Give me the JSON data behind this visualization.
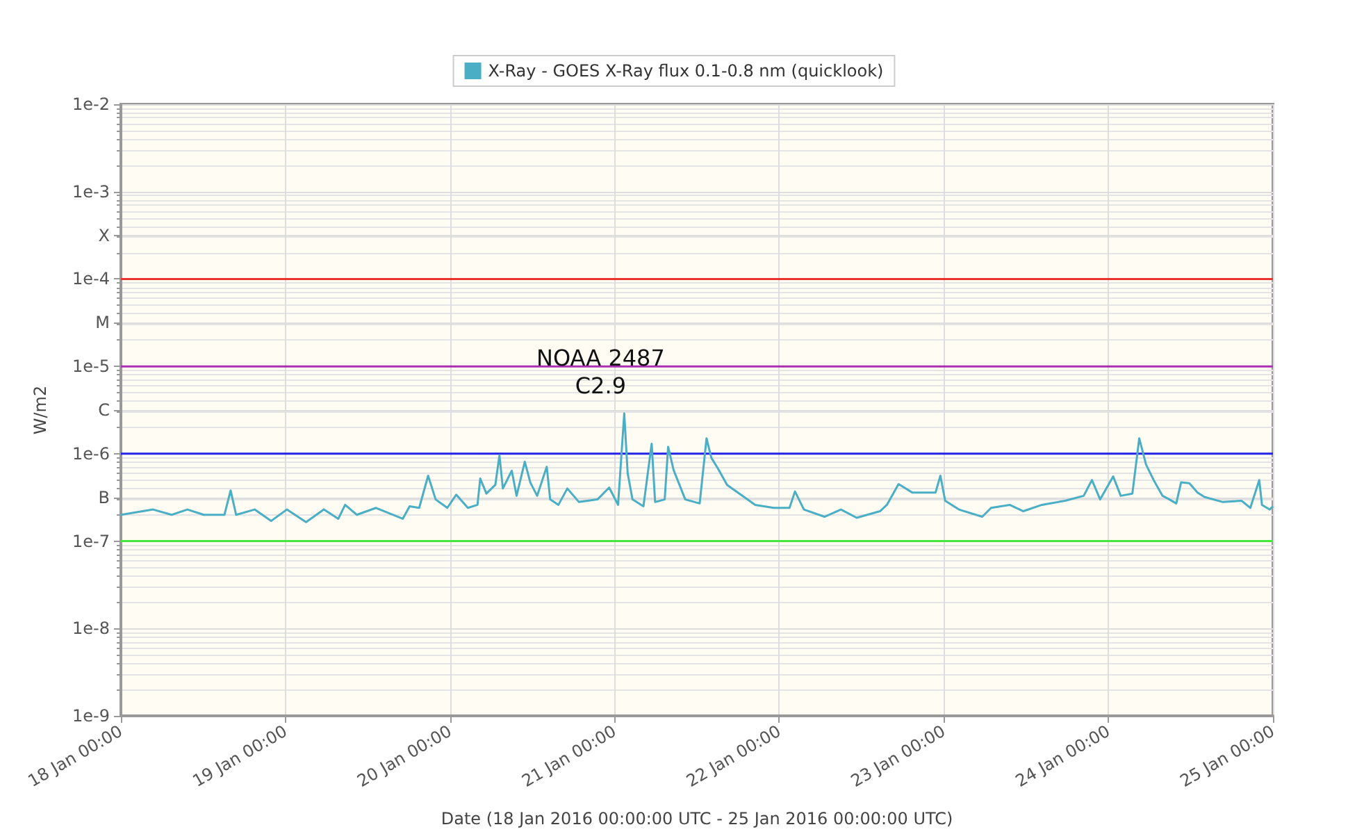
{
  "chart_data": {
    "type": "line",
    "xlabel": "Date (18 Jan 2016 00:00:00 UTC - 25 Jan 2016 00:00:00 UTC)",
    "ylabel": "W/m2",
    "log": "y",
    "grid": true,
    "legend": "top",
    "xlim": [
      "2016-01-18T00:00",
      "2016-01-25T00:00"
    ],
    "xticks": [
      {
        "value": "2016-01-18T00:00",
        "label": "18 Jan 00:00"
      },
      {
        "value": "2016-01-19T00:00",
        "label": "19 Jan 00:00"
      },
      {
        "value": "2016-01-20T00:00",
        "label": "20 Jan 00:00"
      },
      {
        "value": "2016-01-21T00:00",
        "label": "21 Jan 00:00"
      },
      {
        "value": "2016-01-22T00:00",
        "label": "22 Jan 00:00"
      },
      {
        "value": "2016-01-23T00:00",
        "label": "23 Jan 00:00"
      },
      {
        "value": "2016-01-24T00:00",
        "label": "24 Jan 00:00"
      },
      {
        "value": "2016-01-25T00:00",
        "label": "25 Jan 00:00"
      }
    ],
    "ylim": [
      1e-09,
      0.01
    ],
    "yticks": [
      {
        "value": 1e-09,
        "label": "1e-9"
      },
      {
        "value": 1e-08,
        "label": "1e-8"
      },
      {
        "value": 1e-07,
        "label": "1e-7"
      },
      {
        "value": 3.162e-07,
        "label": "B"
      },
      {
        "value": 1e-06,
        "label": "1e-6"
      },
      {
        "value": 3.162e-06,
        "label": "C"
      },
      {
        "value": 1e-05,
        "label": "1e-5"
      },
      {
        "value": 3.162e-05,
        "label": "M"
      },
      {
        "value": 0.0001,
        "label": "1e-4"
      },
      {
        "value": 0.0003162,
        "label": "X"
      },
      {
        "value": 0.001,
        "label": "1e-3"
      },
      {
        "value": 0.01,
        "label": "1e-2"
      }
    ],
    "ref_lines": [
      {
        "axis": "y",
        "value": 0.0001,
        "color": "#e8332f"
      },
      {
        "axis": "y",
        "value": 1e-05,
        "color": "#a72fb0"
      },
      {
        "axis": "y",
        "value": 1e-06,
        "color": "#2222e8"
      },
      {
        "axis": "y",
        "value": 1e-07,
        "color": "#44e83a"
      }
    ],
    "annotations": [
      {
        "text": "NOAA 2487\nC2.9",
        "x": "2016-01-21T01:24",
        "y": 2.9e-06
      }
    ],
    "series": [
      {
        "name": "X-Ray - GOES X-Ray flux 0.1-0.8 nm (quicklook)",
        "color": "#4aaec4",
        "x": [
          "2016-01-18T00:00",
          "2016-01-18T04:42",
          "2016-01-18T07:24",
          "2016-01-18T09:42",
          "2016-01-18T12:06",
          "2016-01-18T15:06",
          "2016-01-18T16:00",
          "2016-01-18T16:48",
          "2016-01-18T19:30",
          "2016-01-18T21:54",
          "2016-01-19T00:12",
          "2016-01-19T03:00",
          "2016-01-19T05:36",
          "2016-01-19T07:42",
          "2016-01-19T08:42",
          "2016-01-19T10:24",
          "2016-01-19T13:12",
          "2016-01-19T17:06",
          "2016-01-19T18:06",
          "2016-01-19T19:30",
          "2016-01-19T20:48",
          "2016-01-19T21:54",
          "2016-01-19T23:36",
          "2016-01-20T00:54",
          "2016-01-20T02:36",
          "2016-01-20T04:00",
          "2016-01-20T04:24",
          "2016-01-20T05:18",
          "2016-01-20T06:36",
          "2016-01-20T07:12",
          "2016-01-20T07:42",
          "2016-01-20T09:00",
          "2016-01-20T09:42",
          "2016-01-20T10:54",
          "2016-01-20T11:42",
          "2016-01-20T12:42",
          "2016-01-20T14:06",
          "2016-01-20T14:36",
          "2016-01-20T15:48",
          "2016-01-20T17:06",
          "2016-01-20T18:48",
          "2016-01-20T21:30",
          "2016-01-20T23:12",
          "2016-01-21T00:30",
          "2016-01-21T01:24",
          "2016-01-21T01:54",
          "2016-01-21T02:36",
          "2016-01-21T04:12",
          "2016-01-21T05:24",
          "2016-01-21T05:54",
          "2016-01-21T07:18",
          "2016-01-21T07:48",
          "2016-01-21T08:36",
          "2016-01-21T10:18",
          "2016-01-21T12:24",
          "2016-01-21T13:24",
          "2016-01-21T14:06",
          "2016-01-21T15:06",
          "2016-01-21T16:24",
          "2016-01-21T18:24",
          "2016-01-21T20:30",
          "2016-01-21T23:12",
          "2016-01-22T01:30",
          "2016-01-22T02:18",
          "2016-01-22T03:36",
          "2016-01-22T06:36",
          "2016-01-22T09:00",
          "2016-01-22T11:18",
          "2016-01-22T14:42",
          "2016-01-22T15:42",
          "2016-01-22T17:24",
          "2016-01-22T19:24",
          "2016-01-22T22:48",
          "2016-01-22T23:30",
          "2016-01-23T00:12",
          "2016-01-23T02:12",
          "2016-01-23T05:36",
          "2016-01-23T06:54",
          "2016-01-23T09:36",
          "2016-01-23T11:36",
          "2016-01-23T14:18",
          "2016-01-23T17:42",
          "2016-01-23T20:24",
          "2016-01-23T21:36",
          "2016-01-23T22:48",
          "2016-01-24T00:42",
          "2016-01-24T01:48",
          "2016-01-24T03:30",
          "2016-01-24T04:30",
          "2016-01-24T05:30",
          "2016-01-24T06:36",
          "2016-01-24T07:54",
          "2016-01-24T08:54",
          "2016-01-24T09:54",
          "2016-01-24T10:36",
          "2016-01-24T11:48",
          "2016-01-24T13:00",
          "2016-01-24T14:00",
          "2016-01-24T16:42",
          "2016-01-24T19:24",
          "2016-01-24T20:42",
          "2016-01-24T22:00",
          "2016-01-24T22:24",
          "2016-01-24T23:30",
          "2016-01-25T00:00"
        ],
        "values": [
          2e-07,
          2.3e-07,
          2e-07,
          2.3e-07,
          2e-07,
          2e-07,
          3.8e-07,
          2e-07,
          2.3e-07,
          1.7e-07,
          2.3e-07,
          1.65e-07,
          2.3e-07,
          1.8e-07,
          2.6e-07,
          2e-07,
          2.4e-07,
          1.8e-07,
          2.5e-07,
          2.4e-07,
          5.6e-07,
          3e-07,
          2.4e-07,
          3.4e-07,
          2.4e-07,
          2.6e-07,
          5.2e-07,
          3.5e-07,
          4.4e-07,
          9.6e-07,
          4e-07,
          6.4e-07,
          3.3e-07,
          8.1e-07,
          4.7e-07,
          3.3e-07,
          7.1e-07,
          3e-07,
          2.6e-07,
          4e-07,
          2.8e-07,
          3e-07,
          4.1e-07,
          2.6e-07,
          2.9e-06,
          6e-07,
          3e-07,
          2.5e-07,
          1.3e-06,
          2.8e-07,
          3e-07,
          1.2e-06,
          6.5e-07,
          3e-07,
          2.7e-07,
          1.5e-06,
          9e-07,
          6.7e-07,
          4.4e-07,
          3.4e-07,
          2.6e-07,
          2.4e-07,
          2.4e-07,
          3.7e-07,
          2.3e-07,
          1.9e-07,
          2.3e-07,
          1.85e-07,
          2.2e-07,
          2.6e-07,
          4.5e-07,
          3.6e-07,
          3.6e-07,
          5.6e-07,
          2.9e-07,
          2.3e-07,
          1.9e-07,
          2.4e-07,
          2.6e-07,
          2.2e-07,
          2.6e-07,
          2.9e-07,
          3.3e-07,
          5e-07,
          3e-07,
          5.5e-07,
          3.3e-07,
          3.5e-07,
          1.5e-06,
          7.5e-07,
          5e-07,
          3.3e-07,
          3e-07,
          2.7e-07,
          4.7e-07,
          4.6e-07,
          3.6e-07,
          3.2e-07,
          2.8e-07,
          2.9e-07,
          2.4e-07,
          5e-07,
          2.6e-07,
          2.3e-07,
          2.5e-07
        ]
      }
    ]
  }
}
